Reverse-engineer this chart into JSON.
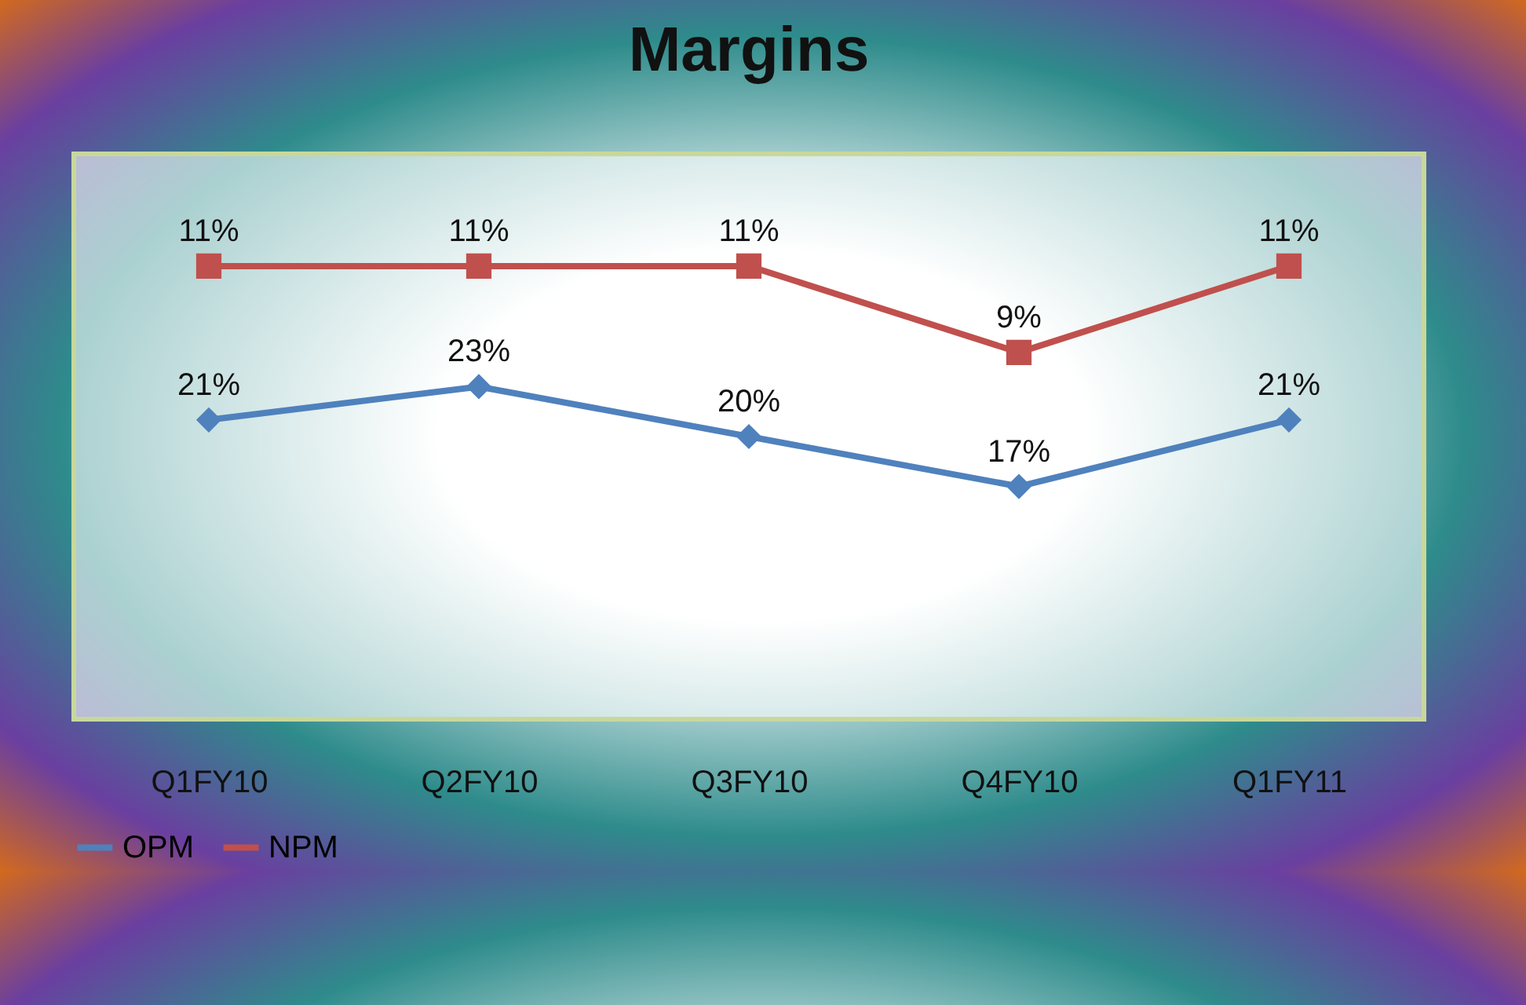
{
  "chart_data": {
    "type": "line",
    "title": "Margins",
    "categories": [
      "Q1FY10",
      "Q2FY10",
      "Q3FY10",
      "Q4FY10",
      "Q1FY11"
    ],
    "series": [
      {
        "name": "OPM",
        "color": "#4f81bd",
        "marker": "diamond",
        "values": [
          21,
          23,
          20,
          17,
          21
        ],
        "value_labels": [
          "21%",
          "23%",
          "20%",
          "17%",
          "21%"
        ]
      },
      {
        "name": "NPM",
        "color": "#c0504d",
        "marker": "square",
        "axis": "y2",
        "values": [
          11,
          11,
          11,
          9,
          11
        ],
        "value_labels": [
          "11%",
          "11%",
          "11%",
          "9%",
          "11%"
        ]
      }
    ],
    "ylim": [
      3,
      37
    ],
    "y2lim": [
      0.5,
      13.6
    ],
    "tick_labels": "x",
    "legend": "bottom"
  }
}
